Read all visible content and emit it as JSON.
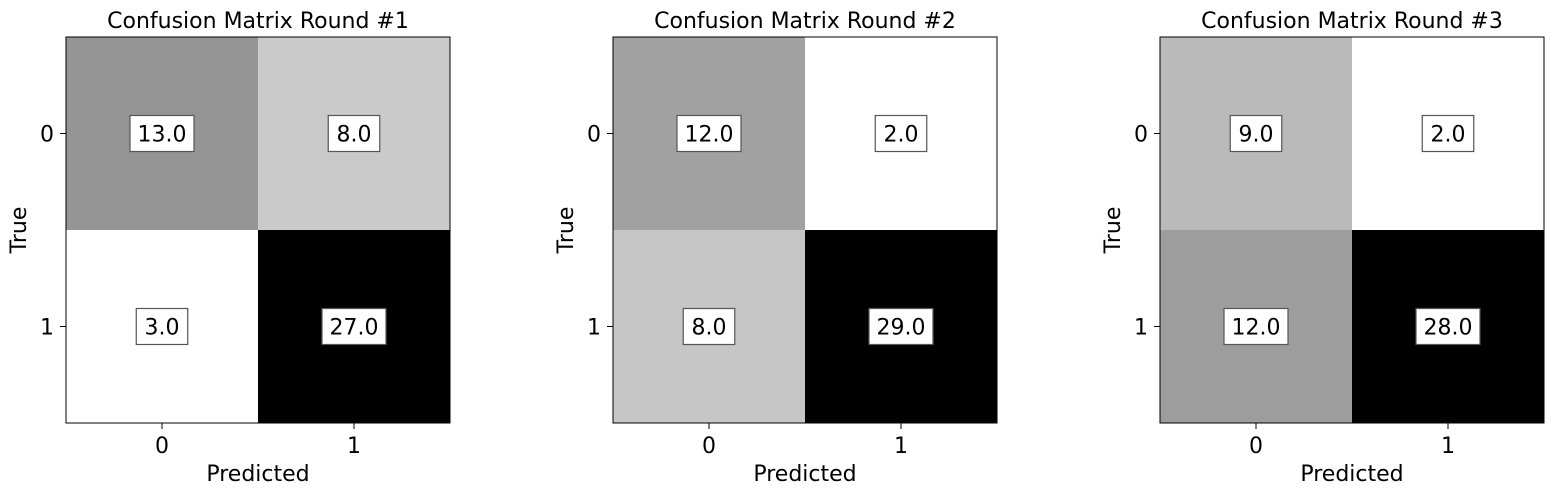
{
  "chart_data": [
    {
      "type": "heatmap",
      "title": "Confusion Matrix Round #1",
      "xlabel": "Predicted",
      "ylabel": "True",
      "x_categories": [
        "0",
        "1"
      ],
      "y_categories": [
        "0",
        "1"
      ],
      "values": [
        [
          13.0,
          8.0
        ],
        [
          3.0,
          27.0
        ]
      ],
      "value_labels": [
        [
          "13.0",
          "8.0"
        ],
        [
          "3.0",
          "27.0"
        ]
      ],
      "colormap": "greys",
      "grid": false
    },
    {
      "type": "heatmap",
      "title": "Confusion Matrix Round #2",
      "xlabel": "Predicted",
      "ylabel": "True",
      "x_categories": [
        "0",
        "1"
      ],
      "y_categories": [
        "0",
        "1"
      ],
      "values": [
        [
          12.0,
          2.0
        ],
        [
          8.0,
          29.0
        ]
      ],
      "value_labels": [
        [
          "12.0",
          "2.0"
        ],
        [
          "8.0",
          "29.0"
        ]
      ],
      "colormap": "greys",
      "grid": false
    },
    {
      "type": "heatmap",
      "title": "Confusion Matrix Round #3",
      "xlabel": "Predicted",
      "ylabel": "True",
      "x_categories": [
        "0",
        "1"
      ],
      "y_categories": [
        "0",
        "1"
      ],
      "values": [
        [
          9.0,
          2.0
        ],
        [
          12.0,
          28.0
        ]
      ],
      "value_labels": [
        [
          "9.0",
          "2.0"
        ],
        [
          "12.0",
          "28.0"
        ]
      ],
      "colormap": "greys",
      "grid": false
    }
  ]
}
